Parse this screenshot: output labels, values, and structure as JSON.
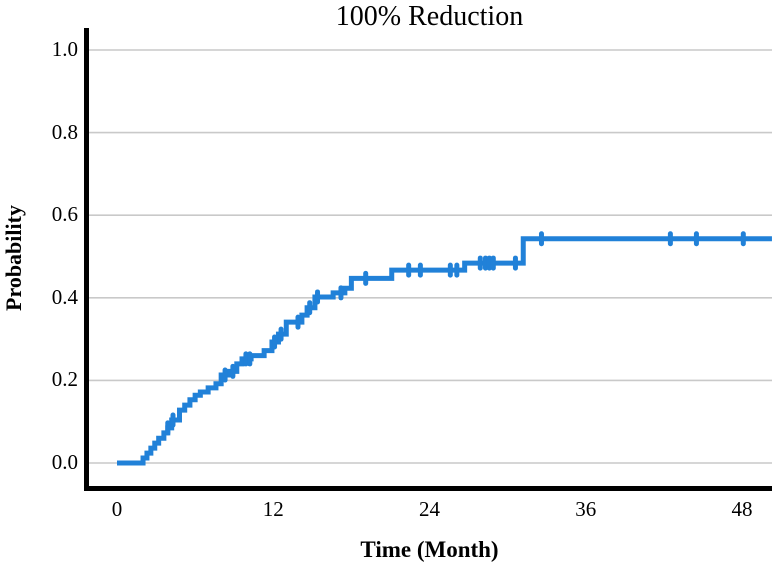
{
  "chart_data": {
    "type": "line",
    "subtype": "kaplan-meier-step",
    "title": "100% Reduction",
    "xlabel": "Time (Month)",
    "ylabel": "Probability",
    "xlim": [
      0,
      50.3
    ],
    "ylim": [
      0,
      1
    ],
    "grid": "horizontal",
    "legend": "none",
    "colors": {
      "curve": "#2181D8",
      "gridline": "#c9c9c9",
      "axis": "#000000",
      "background": "#ffffff",
      "text": "#000000"
    },
    "xticks": [
      {
        "v": 0,
        "label": "0"
      },
      {
        "v": 12,
        "label": "12"
      },
      {
        "v": 24,
        "label": "24"
      },
      {
        "v": 36,
        "label": "36"
      },
      {
        "v": 48,
        "label": "48"
      }
    ],
    "yticks": [
      {
        "v": 0.0,
        "label": "0.0"
      },
      {
        "v": 0.2,
        "label": "0.2"
      },
      {
        "v": 0.4,
        "label": "0.4"
      },
      {
        "v": 0.6,
        "label": "0.6"
      },
      {
        "v": 0.8,
        "label": "0.8"
      },
      {
        "v": 1.0,
        "label": "1.0"
      }
    ],
    "series": [
      {
        "name": "100% reduction probability",
        "steps": [
          [
            0,
            0.0
          ],
          [
            2.0,
            0.012
          ],
          [
            2.3,
            0.024
          ],
          [
            2.6,
            0.036
          ],
          [
            2.9,
            0.048
          ],
          [
            3.2,
            0.06
          ],
          [
            3.6,
            0.073
          ],
          [
            3.9,
            0.085
          ],
          [
            4.2,
            0.104
          ],
          [
            4.8,
            0.128
          ],
          [
            5.2,
            0.14
          ],
          [
            5.6,
            0.153
          ],
          [
            6.0,
            0.164
          ],
          [
            6.4,
            0.172
          ],
          [
            7.0,
            0.182
          ],
          [
            7.6,
            0.192
          ],
          [
            8.0,
            0.213
          ],
          [
            8.6,
            0.222
          ],
          [
            9.2,
            0.24
          ],
          [
            9.6,
            0.252
          ],
          [
            10.3,
            0.26
          ],
          [
            11.3,
            0.272
          ],
          [
            11.9,
            0.293
          ],
          [
            12.4,
            0.312
          ],
          [
            13.0,
            0.341
          ],
          [
            14.2,
            0.358
          ],
          [
            14.6,
            0.376
          ],
          [
            15.2,
            0.402
          ],
          [
            16.6,
            0.412
          ],
          [
            17.5,
            0.423
          ],
          [
            18.0,
            0.447
          ],
          [
            21.1,
            0.467
          ],
          [
            26.7,
            0.484
          ],
          [
            31.2,
            0.543
          ]
        ],
        "curve_end_month": 50.3,
        "censor_marks": [
          [
            3.9,
            0.085
          ],
          [
            4.3,
            0.104
          ],
          [
            8.3,
            0.213
          ],
          [
            8.9,
            0.222
          ],
          [
            9.9,
            0.252
          ],
          [
            10.2,
            0.252
          ],
          [
            12.1,
            0.293
          ],
          [
            12.6,
            0.312
          ],
          [
            13.9,
            0.341
          ],
          [
            14.8,
            0.376
          ],
          [
            15.4,
            0.402
          ],
          [
            17.2,
            0.412
          ],
          [
            19.1,
            0.447
          ],
          [
            22.4,
            0.467
          ],
          [
            23.3,
            0.467
          ],
          [
            25.6,
            0.467
          ],
          [
            26.1,
            0.467
          ],
          [
            27.9,
            0.484
          ],
          [
            28.3,
            0.484
          ],
          [
            28.6,
            0.484
          ],
          [
            28.9,
            0.484
          ],
          [
            30.6,
            0.484
          ],
          [
            32.6,
            0.543
          ],
          [
            42.5,
            0.543
          ],
          [
            44.5,
            0.543
          ],
          [
            48.1,
            0.543
          ]
        ]
      }
    ]
  }
}
